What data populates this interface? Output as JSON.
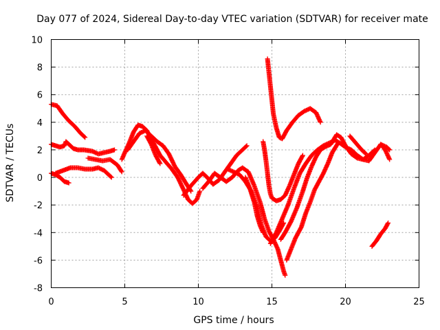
{
  "chart_data": {
    "type": "scatter",
    "title": "Day 077 of 2024, Sidereal Day-to-day VTEC variation (SDTVAR) for receiver mate",
    "xlabel": "GPS time / hours",
    "ylabel": "SDTVAR / TECUs",
    "xlim": [
      0,
      25
    ],
    "ylim": [
      -8,
      10
    ],
    "x_ticks": [
      "0",
      "5",
      "10",
      "15",
      "20",
      "25"
    ],
    "y_ticks": [
      "-8",
      "-6",
      "-4",
      "-2",
      "0",
      "2",
      "4",
      "6",
      "8",
      "10"
    ],
    "grid": true,
    "marker": "+",
    "color": "#ff0000",
    "traces": [
      [
        [
          0.0,
          5.3
        ],
        [
          0.4,
          5.2
        ],
        [
          0.8,
          4.6
        ],
        [
          1.2,
          4.1
        ],
        [
          1.6,
          3.7
        ],
        [
          2.0,
          3.2
        ],
        [
          2.3,
          2.9
        ]
      ],
      [
        [
          0.0,
          2.4
        ],
        [
          0.3,
          2.3
        ],
        [
          0.6,
          2.2
        ],
        [
          0.9,
          2.3
        ],
        [
          1.0,
          2.6
        ],
        [
          1.2,
          2.4
        ],
        [
          1.5,
          2.1
        ],
        [
          1.8,
          2.0
        ],
        [
          2.2,
          2.0
        ],
        [
          2.8,
          1.9
        ],
        [
          3.2,
          1.7
        ],
        [
          3.6,
          1.8
        ],
        [
          4.0,
          1.9
        ],
        [
          4.3,
          2.0
        ]
      ],
      [
        [
          0.0,
          0.3
        ],
        [
          0.3,
          0.2
        ],
        [
          0.6,
          0.0
        ],
        [
          0.9,
          -0.3
        ],
        [
          1.2,
          -0.4
        ]
      ],
      [
        [
          0.3,
          0.3
        ],
        [
          0.8,
          0.5
        ],
        [
          1.3,
          0.7
        ],
        [
          1.8,
          0.7
        ],
        [
          2.3,
          0.6
        ],
        [
          2.8,
          0.6
        ],
        [
          3.2,
          0.7
        ],
        [
          3.6,
          0.5
        ],
        [
          3.9,
          0.2
        ],
        [
          4.1,
          0.0
        ]
      ],
      [
        [
          2.5,
          1.4
        ],
        [
          3.0,
          1.3
        ],
        [
          3.5,
          1.2
        ],
        [
          4.0,
          1.3
        ],
        [
          4.5,
          0.9
        ],
        [
          4.8,
          0.4
        ]
      ],
      [
        [
          4.8,
          1.3
        ],
        [
          5.0,
          1.8
        ],
        [
          5.3,
          2.5
        ],
        [
          5.6,
          3.3
        ],
        [
          5.9,
          3.8
        ],
        [
          6.2,
          3.7
        ],
        [
          6.5,
          3.4
        ],
        [
          6.8,
          2.8
        ],
        [
          7.1,
          2.2
        ],
        [
          7.4,
          1.6
        ],
        [
          7.8,
          1.1
        ],
        [
          8.2,
          0.6
        ],
        [
          8.6,
          0.0
        ],
        [
          9.0,
          -0.9
        ],
        [
          9.3,
          -1.6
        ],
        [
          9.6,
          -1.9
        ],
        [
          9.9,
          -1.6
        ],
        [
          10.1,
          -1.0
        ]
      ],
      [
        [
          5.2,
          2.0
        ],
        [
          5.6,
          2.6
        ],
        [
          6.0,
          3.2
        ],
        [
          6.4,
          3.4
        ],
        [
          6.8,
          3.0
        ],
        [
          7.2,
          2.6
        ],
        [
          7.6,
          2.3
        ],
        [
          8.0,
          1.7
        ],
        [
          8.4,
          0.8
        ],
        [
          8.8,
          0.2
        ],
        [
          9.2,
          -0.5
        ],
        [
          9.5,
          -1.0
        ]
      ],
      [
        [
          6.5,
          3.0
        ],
        [
          6.8,
          2.4
        ],
        [
          7.1,
          1.6
        ],
        [
          7.4,
          1.0
        ]
      ],
      [
        [
          9.0,
          -1.3
        ],
        [
          9.5,
          -0.6
        ],
        [
          10.0,
          0.0
        ],
        [
          10.3,
          0.3
        ],
        [
          10.6,
          0.0
        ],
        [
          11.0,
          -0.5
        ],
        [
          11.4,
          -0.2
        ],
        [
          11.8,
          0.4
        ],
        [
          12.2,
          1.0
        ],
        [
          12.6,
          1.6
        ],
        [
          13.0,
          2.0
        ],
        [
          13.3,
          2.3
        ]
      ],
      [
        [
          10.3,
          -0.8
        ],
        [
          10.7,
          -0.3
        ],
        [
          11.1,
          0.3
        ],
        [
          11.5,
          0.0
        ],
        [
          11.9,
          -0.3
        ],
        [
          12.3,
          0.0
        ],
        [
          12.7,
          0.5
        ],
        [
          13.0,
          0.7
        ],
        [
          13.4,
          0.4
        ],
        [
          13.8,
          -0.6
        ],
        [
          14.2,
          -1.8
        ],
        [
          14.5,
          -3.0
        ],
        [
          14.8,
          -3.9
        ],
        [
          15.1,
          -4.5
        ],
        [
          15.4,
          -5.2
        ],
        [
          15.6,
          -6.0
        ],
        [
          15.8,
          -6.8
        ],
        [
          15.9,
          -7.1
        ]
      ],
      [
        [
          12.0,
          0.6
        ],
        [
          12.4,
          0.4
        ],
        [
          12.8,
          0.2
        ],
        [
          13.2,
          -0.3
        ],
        [
          13.6,
          -1.0
        ],
        [
          14.0,
          -2.2
        ],
        [
          14.3,
          -3.5
        ],
        [
          14.6,
          -4.3
        ],
        [
          14.9,
          -4.6
        ],
        [
          15.2,
          -4.4
        ],
        [
          15.5,
          -3.9
        ],
        [
          15.8,
          -3.3
        ]
      ],
      [
        [
          13.2,
          0.0
        ],
        [
          13.5,
          -0.8
        ],
        [
          13.8,
          -1.8
        ],
        [
          14.0,
          -2.8
        ],
        [
          14.2,
          -3.5
        ],
        [
          14.4,
          -4.0
        ]
      ],
      [
        [
          14.4,
          2.6
        ],
        [
          14.5,
          2.0
        ],
        [
          14.6,
          1.2
        ],
        [
          14.7,
          0.3
        ],
        [
          14.8,
          -0.6
        ],
        [
          14.9,
          -1.2
        ],
        [
          15.0,
          -1.5
        ],
        [
          15.3,
          -1.7
        ],
        [
          15.6,
          -1.6
        ],
        [
          15.9,
          -1.3
        ],
        [
          16.2,
          -0.6
        ],
        [
          16.5,
          0.2
        ],
        [
          16.8,
          1.0
        ],
        [
          17.1,
          1.6
        ]
      ],
      [
        [
          14.7,
          8.6
        ],
        [
          14.8,
          7.6
        ],
        [
          14.9,
          6.6
        ],
        [
          15.0,
          5.6
        ],
        [
          15.1,
          4.6
        ],
        [
          15.3,
          3.6
        ],
        [
          15.5,
          2.9
        ],
        [
          15.7,
          2.8
        ],
        [
          16.0,
          3.4
        ],
        [
          16.4,
          4.0
        ],
        [
          16.8,
          4.5
        ],
        [
          17.2,
          4.8
        ],
        [
          17.6,
          5.0
        ],
        [
          18.0,
          4.7
        ],
        [
          18.3,
          4.0
        ]
      ],
      [
        [
          14.9,
          -4.8
        ],
        [
          15.3,
          -4.0
        ],
        [
          15.7,
          -3.0
        ],
        [
          16.1,
          -2.0
        ],
        [
          16.5,
          -0.8
        ],
        [
          16.9,
          0.3
        ],
        [
          17.3,
          1.0
        ],
        [
          17.7,
          1.6
        ],
        [
          18.1,
          2.0
        ],
        [
          18.5,
          2.3
        ],
        [
          18.9,
          2.5
        ],
        [
          19.3,
          2.7
        ],
        [
          19.6,
          2.5
        ],
        [
          20.0,
          2.2
        ],
        [
          20.4,
          2.0
        ],
        [
          20.8,
          1.6
        ],
        [
          21.2,
          1.3
        ],
        [
          21.6,
          1.2
        ],
        [
          22.0,
          1.8
        ],
        [
          22.4,
          2.4
        ],
        [
          22.8,
          2.2
        ],
        [
          23.0,
          2.0
        ]
      ],
      [
        [
          15.6,
          -4.5
        ],
        [
          15.9,
          -4.0
        ],
        [
          16.3,
          -3.2
        ],
        [
          16.7,
          -2.2
        ],
        [
          17.1,
          -1.0
        ],
        [
          17.4,
          0.0
        ],
        [
          17.7,
          0.8
        ],
        [
          18.0,
          1.5
        ],
        [
          18.3,
          2.0
        ],
        [
          18.6,
          2.2
        ],
        [
          19.0,
          2.4
        ],
        [
          19.4,
          3.1
        ],
        [
          19.7,
          2.9
        ],
        [
          20.0,
          2.3
        ],
        [
          20.4,
          1.7
        ],
        [
          20.8,
          1.4
        ],
        [
          21.2,
          1.3
        ],
        [
          21.6,
          1.6
        ],
        [
          22.0,
          2.0
        ]
      ],
      [
        [
          16.0,
          -6.0
        ],
        [
          16.3,
          -5.2
        ],
        [
          16.6,
          -4.4
        ],
        [
          17.0,
          -3.6
        ],
        [
          17.3,
          -2.6
        ],
        [
          17.6,
          -1.8
        ],
        [
          17.9,
          -0.9
        ],
        [
          18.2,
          -0.3
        ],
        [
          18.5,
          0.3
        ],
        [
          18.8,
          1.0
        ],
        [
          19.1,
          1.8
        ],
        [
          19.5,
          2.5
        ]
      ],
      [
        [
          20.3,
          3.0
        ],
        [
          20.7,
          2.5
        ],
        [
          21.1,
          2.0
        ],
        [
          21.4,
          1.7
        ]
      ],
      [
        [
          22.4,
          2.4
        ],
        [
          22.7,
          2.0
        ],
        [
          23.0,
          1.3
        ]
      ],
      [
        [
          21.8,
          -5.0
        ],
        [
          22.1,
          -4.6
        ],
        [
          22.4,
          -4.1
        ],
        [
          22.7,
          -3.7
        ],
        [
          22.9,
          -3.3
        ]
      ]
    ]
  }
}
